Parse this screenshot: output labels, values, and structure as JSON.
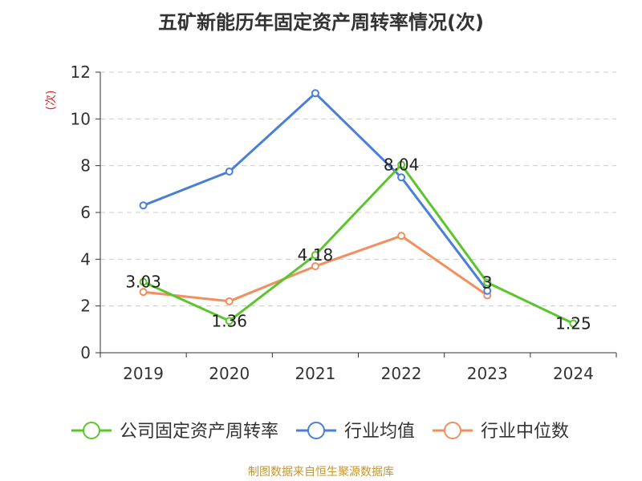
{
  "title": "五矿新能历年固定资产周转率情况(次)",
  "source": "制图数据来自恒生聚源数据库",
  "chart_data": {
    "type": "line",
    "categories": [
      "2019",
      "2020",
      "2021",
      "2022",
      "2023",
      "2024"
    ],
    "ylabel": "(次)",
    "ylim": [
      0,
      12
    ],
    "yticks": [
      0,
      2,
      4,
      6,
      8,
      10,
      12
    ],
    "grid": true,
    "legend_position": "bottom",
    "series": [
      {
        "name": "公司固定资产周转率",
        "color": "#5cc52c",
        "values": [
          3.03,
          1.36,
          4.18,
          8.04,
          3,
          1.25
        ],
        "labels": [
          "3.03",
          "1.36",
          "4.18",
          "8.04",
          "3",
          "1.25"
        ]
      },
      {
        "name": "行业均值",
        "color": "#4a7fd9",
        "values": [
          6.3,
          7.75,
          11.1,
          7.5,
          2.65,
          null
        ]
      },
      {
        "name": "行业中位数",
        "color": "#f38f5f",
        "values": [
          2.6,
          2.2,
          3.7,
          5.0,
          2.45,
          null
        ]
      }
    ]
  }
}
